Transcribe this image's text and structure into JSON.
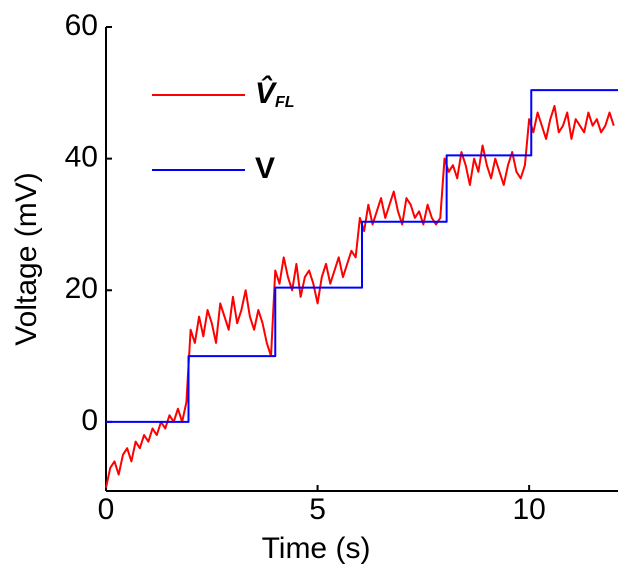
{
  "chart_data": {
    "type": "line",
    "xlabel": "Time (s)",
    "ylabel": "Voltage (mV)",
    "xlim": [
      0,
      12.1
    ],
    "ylim": [
      -10.5,
      60
    ],
    "xticks": [
      0,
      5,
      10
    ],
    "yticks": [
      0,
      20,
      40,
      60
    ],
    "legend": "upper left",
    "series": [
      {
        "name": "V̂FL",
        "color": "#ff0000",
        "x": [
          0,
          0.1,
          0.2,
          0.3,
          0.4,
          0.5,
          0.6,
          0.7,
          0.8,
          0.9,
          1,
          1.1,
          1.2,
          1.3,
          1.4,
          1.5,
          1.6,
          1.7,
          1.8,
          1.9,
          2,
          2.1,
          2.2,
          2.3,
          2.4,
          2.5,
          2.6,
          2.7,
          2.8,
          2.9,
          3,
          3.1,
          3.2,
          3.3,
          3.4,
          3.5,
          3.6,
          3.7,
          3.8,
          3.9,
          4,
          4.1,
          4.2,
          4.3,
          4.4,
          4.5,
          4.6,
          4.7,
          4.8,
          4.9,
          5,
          5.1,
          5.2,
          5.3,
          5.4,
          5.5,
          5.6,
          5.7,
          5.8,
          5.9,
          6,
          6.1,
          6.2,
          6.3,
          6.4,
          6.5,
          6.6,
          6.7,
          6.8,
          6.9,
          7,
          7.1,
          7.2,
          7.3,
          7.4,
          7.5,
          7.6,
          7.7,
          7.8,
          7.9,
          8,
          8.1,
          8.2,
          8.3,
          8.4,
          8.5,
          8.6,
          8.7,
          8.8,
          8.9,
          9,
          9.1,
          9.2,
          9.3,
          9.4,
          9.5,
          9.6,
          9.7,
          9.8,
          9.9,
          10,
          10.1,
          10.2,
          10.3,
          10.4,
          10.5,
          10.6,
          10.7,
          10.8,
          10.9,
          11,
          11.1,
          11.2,
          11.3,
          11.4,
          11.5,
          11.6,
          11.7,
          11.8,
          11.9,
          12
        ],
        "values": [
          -10,
          -7,
          -6,
          -8,
          -5,
          -4,
          -6,
          -3,
          -4,
          -2,
          -3,
          -1,
          -2,
          0,
          -1,
          1,
          0,
          2,
          0,
          3,
          14,
          12,
          16,
          13,
          17,
          15,
          12,
          18,
          16,
          14,
          19,
          15,
          17,
          20,
          16,
          14,
          17,
          15,
          12,
          10,
          23,
          21,
          25,
          22,
          20,
          24,
          19,
          22,
          23,
          21,
          18,
          22,
          24,
          21,
          23,
          25,
          22,
          24,
          26,
          25,
          31,
          29,
          33,
          30,
          32,
          34,
          31,
          33,
          35,
          32,
          30,
          34,
          33,
          31,
          32,
          30,
          33,
          31,
          30,
          31,
          40,
          38,
          39,
          37,
          41,
          39,
          36,
          40,
          38,
          42,
          39,
          37,
          40,
          38,
          36,
          39,
          41,
          38,
          37,
          39,
          46,
          44,
          47,
          45,
          43,
          46,
          48,
          44,
          45,
          47,
          43,
          46,
          45,
          44,
          47,
          45,
          46,
          44,
          45,
          47,
          45
        ]
      },
      {
        "name": "V",
        "color": "#0000ff",
        "x": [
          0,
          1.95,
          1.95,
          4,
          4,
          6.05,
          6.05,
          8.05,
          8.05,
          10.05,
          10.05,
          12.1
        ],
        "values": [
          0,
          0,
          10,
          10,
          20.4,
          20.4,
          30.4,
          30.4,
          40.5,
          40.5,
          50.4,
          50.4
        ]
      }
    ]
  }
}
